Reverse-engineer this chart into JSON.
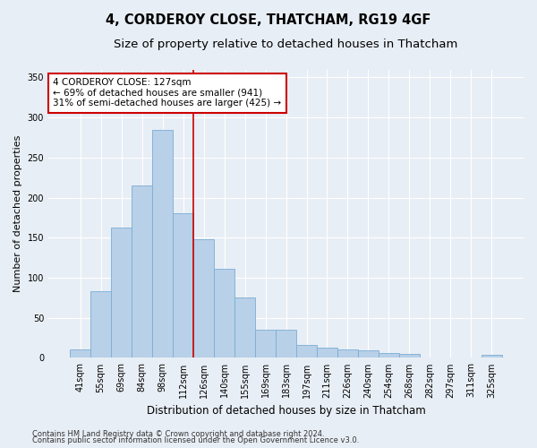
{
  "title": "4, CORDEROY CLOSE, THATCHAM, RG19 4GF",
  "subtitle": "Size of property relative to detached houses in Thatcham",
  "xlabel": "Distribution of detached houses by size in Thatcham",
  "ylabel": "Number of detached properties",
  "categories": [
    "41sqm",
    "55sqm",
    "69sqm",
    "84sqm",
    "98sqm",
    "112sqm",
    "126sqm",
    "140sqm",
    "155sqm",
    "169sqm",
    "183sqm",
    "197sqm",
    "211sqm",
    "226sqm",
    "240sqm",
    "254sqm",
    "268sqm",
    "282sqm",
    "297sqm",
    "311sqm",
    "325sqm"
  ],
  "values": [
    10,
    83,
    163,
    215,
    285,
    180,
    148,
    111,
    75,
    35,
    35,
    16,
    13,
    11,
    9,
    6,
    5,
    1,
    1,
    1,
    4
  ],
  "bar_color": "#b8d0e8",
  "bar_edge_color": "#7aaed6",
  "vline_index": 5.5,
  "vline_color": "#cc0000",
  "annotation_line1": "4 CORDEROY CLOSE: 127sqm",
  "annotation_line2": "← 69% of detached houses are smaller (941)",
  "annotation_line3": "31% of semi-detached houses are larger (425) →",
  "annotation_box_facecolor": "#ffffff",
  "annotation_box_edgecolor": "#cc0000",
  "ylim": [
    0,
    360
  ],
  "yticks": [
    0,
    50,
    100,
    150,
    200,
    250,
    300,
    350
  ],
  "footer1": "Contains HM Land Registry data © Crown copyright and database right 2024.",
  "footer2": "Contains public sector information licensed under the Open Government Licence v3.0.",
  "fig_facecolor": "#e8eef5",
  "plot_facecolor": "#e8eef5",
  "grid_color": "#ffffff",
  "title_fontsize": 10.5,
  "subtitle_fontsize": 9.5,
  "tick_fontsize": 7,
  "ylabel_fontsize": 8,
  "xlabel_fontsize": 8.5,
  "annotation_fontsize": 7.5,
  "footer_fontsize": 6
}
